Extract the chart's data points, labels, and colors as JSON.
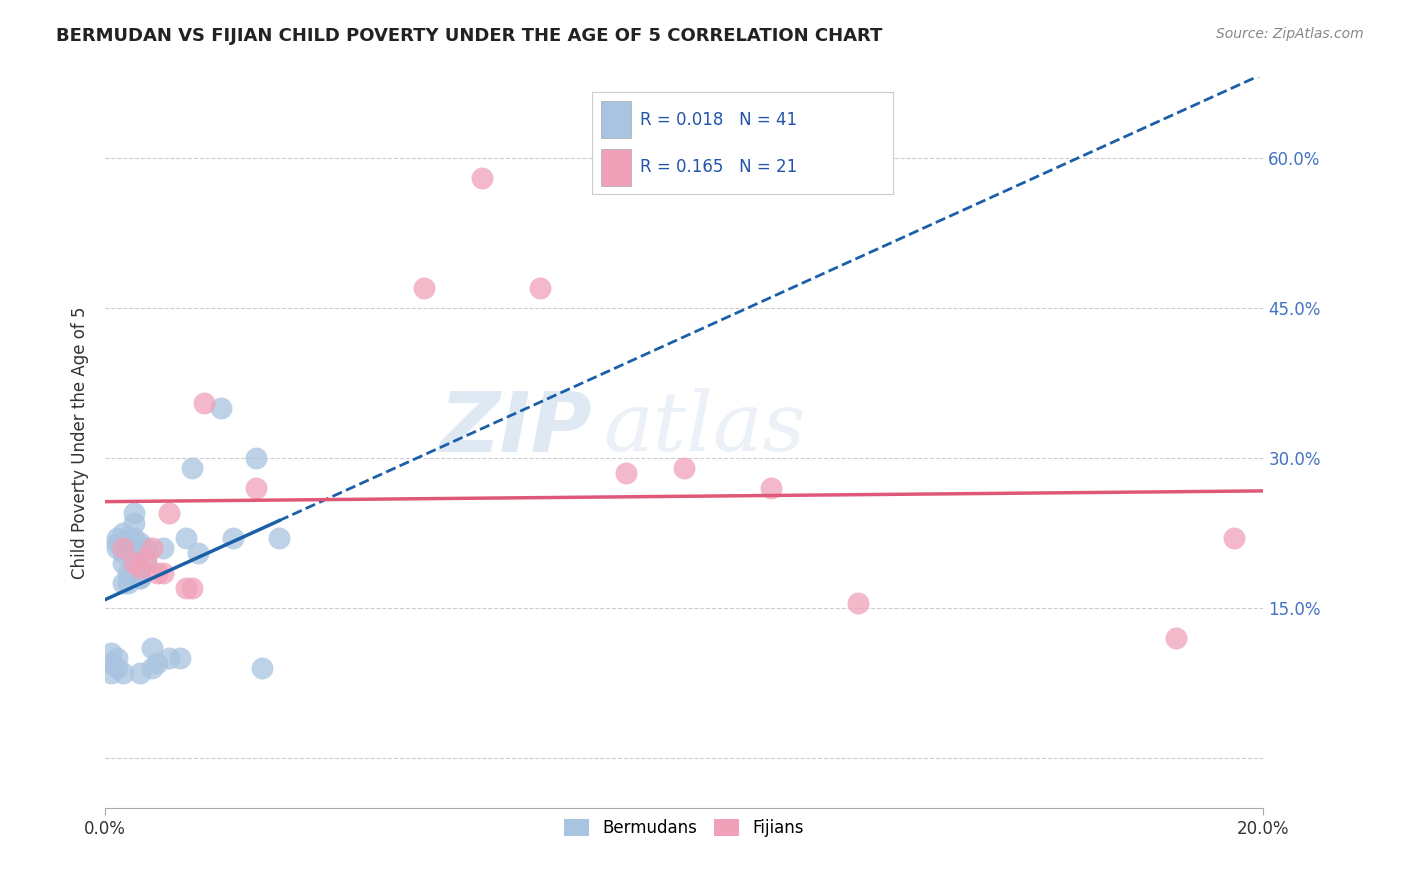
{
  "title": "BERMUDAN VS FIJIAN CHILD POVERTY UNDER THE AGE OF 5 CORRELATION CHART",
  "source": "Source: ZipAtlas.com",
  "ylabel": "Child Poverty Under the Age of 5",
  "xlim": [
    0.0,
    0.2
  ],
  "ylim": [
    -0.05,
    0.68
  ],
  "yticks": [
    0.0,
    0.15,
    0.3,
    0.45,
    0.6
  ],
  "ytick_labels": [
    "",
    "15.0%",
    "30.0%",
    "45.0%",
    "60.0%"
  ],
  "legend_r1": "R = 0.018",
  "legend_n1": "N = 41",
  "legend_r2": "R = 0.165",
  "legend_n2": "N = 21",
  "bermuda_color": "#a8c4e0",
  "fijian_color": "#f0a0b8",
  "bermuda_line_color": "#1a5fa8",
  "fijian_line_color": "#e05878",
  "watermark_zip": "ZIP",
  "watermark_atlas": "atlas",
  "bermuda_x": [
    0.001,
    0.001,
    0.001,
    0.002,
    0.002,
    0.002,
    0.002,
    0.002,
    0.003,
    0.003,
    0.003,
    0.003,
    0.003,
    0.004,
    0.004,
    0.004,
    0.004,
    0.005,
    0.005,
    0.005,
    0.005,
    0.006,
    0.006,
    0.006,
    0.006,
    0.007,
    0.007,
    0.008,
    0.008,
    0.009,
    0.01,
    0.011,
    0.013,
    0.014,
    0.016,
    0.02,
    0.022,
    0.026,
    0.027,
    0.03,
    0.015
  ],
  "bermuda_y": [
    0.105,
    0.095,
    0.085,
    0.22,
    0.215,
    0.21,
    0.09,
    0.1,
    0.225,
    0.205,
    0.195,
    0.175,
    0.085,
    0.21,
    0.22,
    0.185,
    0.175,
    0.21,
    0.235,
    0.245,
    0.22,
    0.18,
    0.085,
    0.18,
    0.215,
    0.195,
    0.21,
    0.09,
    0.11,
    0.095,
    0.21,
    0.1,
    0.1,
    0.22,
    0.205,
    0.35,
    0.22,
    0.3,
    0.09,
    0.22,
    0.29
  ],
  "fijian_x": [
    0.003,
    0.005,
    0.006,
    0.007,
    0.008,
    0.009,
    0.01,
    0.011,
    0.014,
    0.015,
    0.017,
    0.026,
    0.055,
    0.065,
    0.075,
    0.09,
    0.1,
    0.115,
    0.13,
    0.185,
    0.195
  ],
  "fijian_y": [
    0.21,
    0.195,
    0.19,
    0.2,
    0.21,
    0.185,
    0.185,
    0.245,
    0.17,
    0.17,
    0.355,
    0.27,
    0.47,
    0.58,
    0.47,
    0.285,
    0.29,
    0.27,
    0.155,
    0.12,
    0.22
  ]
}
